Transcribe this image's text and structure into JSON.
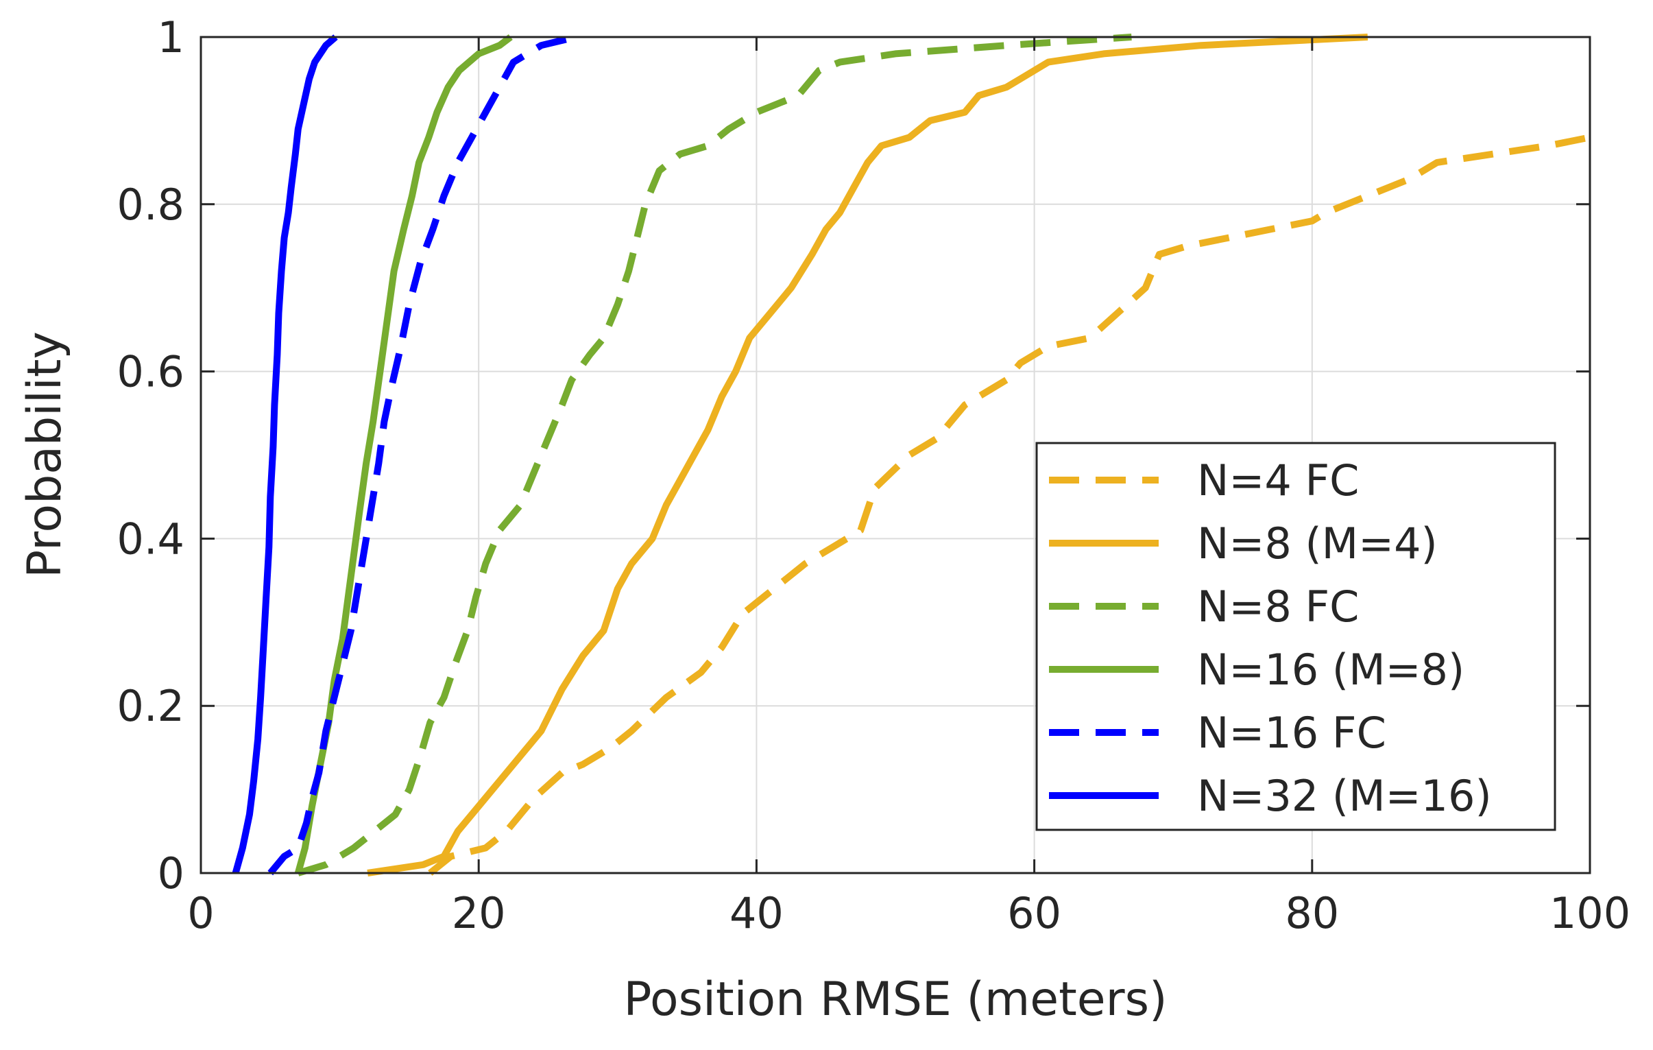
{
  "chart_data": {
    "type": "line",
    "subtype": "empirical-cdf",
    "title": "",
    "xlabel": "Position RMSE (meters)",
    "ylabel": "Probability",
    "xlim": [
      0,
      100
    ],
    "ylim": [
      0,
      1
    ],
    "xticks": [
      0,
      20,
      40,
      60,
      80,
      100
    ],
    "xtick_labels": [
      "0",
      "20",
      "40",
      "60",
      "80",
      "100"
    ],
    "yticks": [
      0,
      0.2,
      0.4,
      0.6,
      0.8,
      1
    ],
    "ytick_labels": [
      "0",
      "0.2",
      "0.4",
      "0.6",
      "0.8",
      "1"
    ],
    "grid": true,
    "legend_position": "bottom-right",
    "series": [
      {
        "name": "N=4 FC",
        "color": "#EDB120",
        "style": "dashed",
        "points": [
          [
            16.5,
            0
          ],
          [
            18,
            0.02
          ],
          [
            20.5,
            0.03
          ],
          [
            22,
            0.05
          ],
          [
            24,
            0.09
          ],
          [
            26,
            0.12
          ],
          [
            27.5,
            0.13
          ],
          [
            29.5,
            0.15
          ],
          [
            31,
            0.17
          ],
          [
            33.5,
            0.21
          ],
          [
            36,
            0.24
          ],
          [
            37.5,
            0.27
          ],
          [
            39,
            0.31
          ],
          [
            40.5,
            0.33
          ],
          [
            42,
            0.35
          ],
          [
            43.5,
            0.37
          ],
          [
            45.5,
            0.39
          ],
          [
            47.5,
            0.41
          ],
          [
            48.5,
            0.46
          ],
          [
            51,
            0.5
          ],
          [
            53,
            0.52
          ],
          [
            55,
            0.56
          ],
          [
            58,
            0.59
          ],
          [
            59,
            0.61
          ],
          [
            61,
            0.63
          ],
          [
            64,
            0.64
          ],
          [
            66,
            0.67
          ],
          [
            68,
            0.7
          ],
          [
            69,
            0.74
          ],
          [
            71,
            0.75
          ],
          [
            74,
            0.76
          ],
          [
            80,
            0.78
          ],
          [
            81,
            0.79
          ],
          [
            84,
            0.81
          ],
          [
            87,
            0.83
          ],
          [
            89,
            0.85
          ],
          [
            93,
            0.86
          ],
          [
            97,
            0.87
          ],
          [
            100,
            0.88
          ]
        ]
      },
      {
        "name": "N=8 (M=4)",
        "color": "#EDB120",
        "style": "solid",
        "points": [
          [
            12,
            0
          ],
          [
            16,
            0.01
          ],
          [
            17.5,
            0.02
          ],
          [
            18.5,
            0.05
          ],
          [
            20,
            0.08
          ],
          [
            21.5,
            0.11
          ],
          [
            23,
            0.14
          ],
          [
            24.5,
            0.17
          ],
          [
            26,
            0.22
          ],
          [
            27.5,
            0.26
          ],
          [
            29,
            0.29
          ],
          [
            30,
            0.34
          ],
          [
            31,
            0.37
          ],
          [
            32.5,
            0.4
          ],
          [
            33.5,
            0.44
          ],
          [
            34.5,
            0.47
          ],
          [
            35.5,
            0.5
          ],
          [
            36.5,
            0.53
          ],
          [
            37.5,
            0.57
          ],
          [
            38.5,
            0.6
          ],
          [
            39.5,
            0.64
          ],
          [
            41,
            0.67
          ],
          [
            42.5,
            0.7
          ],
          [
            44,
            0.74
          ],
          [
            45,
            0.77
          ],
          [
            46,
            0.79
          ],
          [
            47,
            0.82
          ],
          [
            48,
            0.85
          ],
          [
            49,
            0.87
          ],
          [
            51,
            0.88
          ],
          [
            52.5,
            0.9
          ],
          [
            55,
            0.91
          ],
          [
            56,
            0.93
          ],
          [
            58,
            0.94
          ],
          [
            59,
            0.95
          ],
          [
            61,
            0.97
          ],
          [
            65,
            0.98
          ],
          [
            72,
            0.99
          ],
          [
            84,
            1
          ]
        ]
      },
      {
        "name": "N=8 FC",
        "color": "#77AC30",
        "style": "dashed",
        "points": [
          [
            7,
            0
          ],
          [
            9,
            0.01
          ],
          [
            11,
            0.03
          ],
          [
            12.5,
            0.05
          ],
          [
            14,
            0.07
          ],
          [
            15,
            0.1
          ],
          [
            15.8,
            0.14
          ],
          [
            16.5,
            0.18
          ],
          [
            17.5,
            0.21
          ],
          [
            18.3,
            0.25
          ],
          [
            19.2,
            0.29
          ],
          [
            19.8,
            0.33
          ],
          [
            20.5,
            0.37
          ],
          [
            21.5,
            0.41
          ],
          [
            23,
            0.44
          ],
          [
            24,
            0.48
          ],
          [
            25,
            0.52
          ],
          [
            26,
            0.56
          ],
          [
            26.7,
            0.59
          ],
          [
            28,
            0.62
          ],
          [
            29,
            0.64
          ],
          [
            30,
            0.68
          ],
          [
            30.8,
            0.72
          ],
          [
            31.4,
            0.76
          ],
          [
            32,
            0.8
          ],
          [
            33,
            0.84
          ],
          [
            34.5,
            0.86
          ],
          [
            36.5,
            0.87
          ],
          [
            38,
            0.89
          ],
          [
            40,
            0.91
          ],
          [
            41.5,
            0.92
          ],
          [
            43,
            0.93
          ],
          [
            44.5,
            0.96
          ],
          [
            46,
            0.97
          ],
          [
            50,
            0.98
          ],
          [
            58,
            0.99
          ],
          [
            67,
            1
          ]
        ]
      },
      {
        "name": "N=16 (M=8)",
        "color": "#77AC30",
        "style": "solid",
        "points": [
          [
            7,
            0
          ],
          [
            7.5,
            0.03
          ],
          [
            8,
            0.08
          ],
          [
            8.6,
            0.13
          ],
          [
            9.2,
            0.18
          ],
          [
            9.6,
            0.23
          ],
          [
            10.2,
            0.28
          ],
          [
            10.6,
            0.33
          ],
          [
            11,
            0.38
          ],
          [
            11.4,
            0.43
          ],
          [
            11.9,
            0.49
          ],
          [
            12.4,
            0.54
          ],
          [
            12.9,
            0.6
          ],
          [
            13.4,
            0.66
          ],
          [
            13.9,
            0.72
          ],
          [
            14.6,
            0.77
          ],
          [
            15.2,
            0.81
          ],
          [
            15.7,
            0.85
          ],
          [
            16.4,
            0.88
          ],
          [
            17,
            0.91
          ],
          [
            17.8,
            0.94
          ],
          [
            18.6,
            0.96
          ],
          [
            20,
            0.98
          ],
          [
            21.5,
            0.99
          ],
          [
            22.3,
            1
          ]
        ]
      },
      {
        "name": "N=16 FC",
        "color": "#0000FF",
        "style": "dashed",
        "points": [
          [
            5,
            0
          ],
          [
            6,
            0.02
          ],
          [
            7,
            0.03
          ],
          [
            7.6,
            0.06
          ],
          [
            8,
            0.09
          ],
          [
            8.5,
            0.12
          ],
          [
            9,
            0.17
          ],
          [
            9.6,
            0.21
          ],
          [
            10.2,
            0.25
          ],
          [
            10.8,
            0.29
          ],
          [
            11.3,
            0.34
          ],
          [
            11.8,
            0.39
          ],
          [
            12.3,
            0.44
          ],
          [
            12.8,
            0.49
          ],
          [
            13.2,
            0.54
          ],
          [
            13.7,
            0.58
          ],
          [
            14.4,
            0.63
          ],
          [
            15,
            0.68
          ],
          [
            15.8,
            0.73
          ],
          [
            16.7,
            0.77
          ],
          [
            17.5,
            0.81
          ],
          [
            18.5,
            0.85
          ],
          [
            19.5,
            0.88
          ],
          [
            20.5,
            0.91
          ],
          [
            21.5,
            0.94
          ],
          [
            22.5,
            0.97
          ],
          [
            24.5,
            0.99
          ],
          [
            27,
            1
          ]
        ]
      },
      {
        "name": "N=32 (M=16)",
        "color": "#0000FF",
        "style": "solid",
        "points": [
          [
            2.5,
            0
          ],
          [
            3,
            0.03
          ],
          [
            3.5,
            0.07
          ],
          [
            3.8,
            0.11
          ],
          [
            4.1,
            0.16
          ],
          [
            4.3,
            0.21
          ],
          [
            4.5,
            0.27
          ],
          [
            4.7,
            0.33
          ],
          [
            4.9,
            0.39
          ],
          [
            5,
            0.45
          ],
          [
            5.2,
            0.51
          ],
          [
            5.3,
            0.56
          ],
          [
            5.5,
            0.62
          ],
          [
            5.6,
            0.67
          ],
          [
            5.8,
            0.72
          ],
          [
            6,
            0.76
          ],
          [
            6.3,
            0.79
          ],
          [
            6.5,
            0.82
          ],
          [
            6.8,
            0.86
          ],
          [
            7,
            0.89
          ],
          [
            7.4,
            0.92
          ],
          [
            7.8,
            0.95
          ],
          [
            8.2,
            0.97
          ],
          [
            9,
            0.99
          ],
          [
            9.7,
            1
          ]
        ]
      }
    ]
  }
}
